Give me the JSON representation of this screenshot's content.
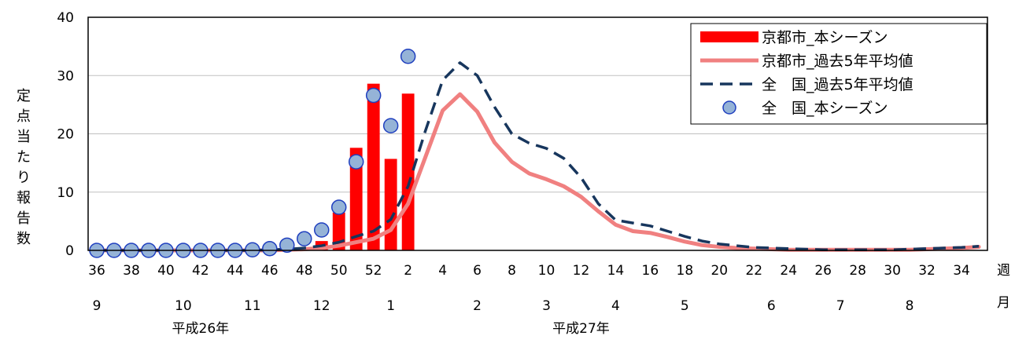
{
  "chart_data": {
    "type": "bar",
    "ylabel": "定点当たり報告数",
    "ylim": [
      0,
      40
    ],
    "yticks": [
      0,
      10,
      20,
      30,
      40
    ],
    "grid": true,
    "legend_position": "top-right",
    "week_axis_label": "週",
    "month_axis_label": "月",
    "week_ticks": [
      "36",
      "38",
      "40",
      "42",
      "44",
      "46",
      "48",
      "50",
      "52",
      "2",
      "4",
      "6",
      "8",
      "10",
      "12",
      "14",
      "16",
      "18",
      "20",
      "22",
      "24",
      "26",
      "28",
      "30",
      "32",
      "34"
    ],
    "month_ticks": [
      {
        "label": "9",
        "week": "36"
      },
      {
        "label": "10",
        "week": "41"
      },
      {
        "label": "11",
        "week": "45"
      },
      {
        "label": "12",
        "week": "49"
      },
      {
        "label": "1",
        "week": "1"
      },
      {
        "label": "2",
        "week": "6"
      },
      {
        "label": "3",
        "week": "10"
      },
      {
        "label": "4",
        "week": "14"
      },
      {
        "label": "5",
        "week": "18"
      },
      {
        "label": "6",
        "week": "23"
      },
      {
        "label": "7",
        "week": "27"
      },
      {
        "label": "8",
        "week": "31"
      }
    ],
    "year_labels": [
      {
        "label": "平成26年",
        "week": "42"
      },
      {
        "label": "平成27年",
        "week": "12"
      }
    ],
    "x": [
      "36",
      "37",
      "38",
      "39",
      "40",
      "41",
      "42",
      "43",
      "44",
      "45",
      "46",
      "47",
      "48",
      "49",
      "50",
      "51",
      "52",
      "1",
      "2",
      "3",
      "4",
      "5",
      "6",
      "7",
      "8",
      "9",
      "10",
      "11",
      "12",
      "13",
      "14",
      "15",
      "16",
      "17",
      "18",
      "19",
      "20",
      "21",
      "22",
      "23",
      "24",
      "25",
      "26",
      "27",
      "28",
      "29",
      "30",
      "31",
      "32",
      "33",
      "34",
      "35"
    ],
    "series": [
      {
        "name": "京都市_本シーズン",
        "kind": "bar",
        "color": "#ff0000",
        "values": [
          0,
          0,
          0,
          0,
          0,
          0,
          0,
          0,
          0,
          0,
          0,
          0.1,
          0.3,
          1.6,
          6.5,
          17.6,
          28.6,
          15.7,
          26.9,
          null,
          null,
          null,
          null,
          null,
          null,
          null,
          null,
          null,
          null,
          null,
          null,
          null,
          null,
          null,
          null,
          null,
          null,
          null,
          null,
          null,
          null,
          null,
          null,
          null,
          null,
          null,
          null,
          null,
          null,
          null,
          null,
          null
        ]
      },
      {
        "name": "京都市_過去5年平均値",
        "kind": "line",
        "color": "#f08080",
        "values": [
          0,
          0,
          0,
          0,
          0,
          0,
          0,
          0,
          0,
          0,
          0,
          0.1,
          0.2,
          0.4,
          0.8,
          1.4,
          2.0,
          3.5,
          8.0,
          16.0,
          24.0,
          26.8,
          23.8,
          18.5,
          15.2,
          13.2,
          12.2,
          11.0,
          9.2,
          6.7,
          4.4,
          3.3,
          3.0,
          2.3,
          1.5,
          0.9,
          0.6,
          0.4,
          0.3,
          0.2,
          0.1,
          0.1,
          0.1,
          0.1,
          0.1,
          0.1,
          0.1,
          0.1,
          0.2,
          0.3,
          0.4,
          0.6
        ]
      },
      {
        "name": "全　国_過去5年平均値",
        "kind": "dashed-line",
        "color": "#17365d",
        "values": [
          0,
          0,
          0,
          0,
          0,
          0,
          0,
          0,
          0,
          0,
          0.1,
          0.2,
          0.4,
          0.8,
          1.4,
          2.4,
          3.3,
          5.3,
          11.0,
          20.5,
          29.2,
          32.2,
          30.0,
          24.6,
          20.0,
          18.4,
          17.5,
          15.8,
          12.5,
          8.0,
          5.2,
          4.7,
          4.2,
          3.3,
          2.4,
          1.6,
          1.1,
          0.8,
          0.5,
          0.4,
          0.3,
          0.2,
          0.1,
          0.1,
          0.1,
          0.1,
          0.1,
          0.2,
          0.3,
          0.4,
          0.5,
          0.7
        ]
      },
      {
        "name": "全　国_本シーズン",
        "kind": "marker",
        "color": "#95b3d7",
        "edge_color": "#1f3fbf",
        "values": [
          0,
          0,
          0,
          0,
          0,
          0,
          0,
          0,
          0,
          0.1,
          0.3,
          0.9,
          2.0,
          3.5,
          7.4,
          15.2,
          26.6,
          21.4,
          33.3,
          null,
          null,
          null,
          null,
          null,
          null,
          null,
          null,
          null,
          null,
          null,
          null,
          null,
          null,
          null,
          null,
          null,
          null,
          null,
          null,
          null,
          null,
          null,
          null,
          null,
          null,
          null,
          null,
          null,
          null,
          null,
          null,
          null
        ]
      }
    ]
  }
}
